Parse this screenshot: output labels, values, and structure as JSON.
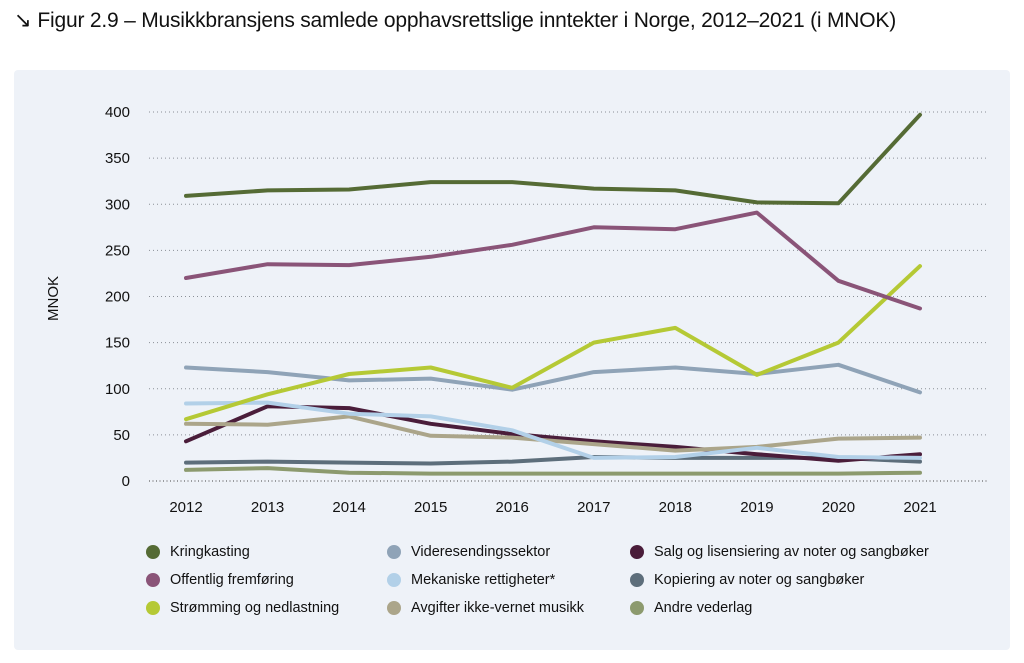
{
  "title": {
    "arrow": "↘",
    "text": "Figur 2.9 – Musikkbransjens samlede opphavsrettslige inntekter i Norge, 2012–2021 (i MNOK)"
  },
  "chart_data": {
    "type": "line",
    "title": "Figur 2.9 – Musikkbransjens samlede opphavsrettslige inntekter i Norge, 2012–2021 (i MNOK)",
    "xlabel": "",
    "ylabel": "MNOK",
    "ylim": [
      0,
      400
    ],
    "yticks": [
      0,
      50,
      100,
      150,
      200,
      250,
      300,
      350,
      400
    ],
    "grid": "horizontal-dotted",
    "legend_position": "bottom",
    "categories": [
      "2012",
      "2013",
      "2014",
      "2015",
      "2016",
      "2017",
      "2018",
      "2019",
      "2020",
      "2021"
    ],
    "series": [
      {
        "name": "Kringkasting",
        "color": "#556b35",
        "values": [
          309,
          315,
          316,
          324,
          324,
          317,
          315,
          302,
          301,
          397
        ]
      },
      {
        "name": "Offentlig fremføring",
        "color": "#8a5478",
        "values": [
          220,
          235,
          234,
          243,
          256,
          275,
          273,
          291,
          217,
          187
        ]
      },
      {
        "name": "Strømming og nedlastning",
        "color": "#b5c935",
        "values": [
          67,
          94,
          116,
          123,
          101,
          150,
          166,
          115,
          150,
          233
        ]
      },
      {
        "name": "Videresendingssektor",
        "color": "#8fa3b7",
        "values": [
          123,
          118,
          109,
          111,
          99,
          118,
          123,
          116,
          126,
          96
        ]
      },
      {
        "name": "Mekaniske rettigheter*",
        "color": "#b2d0e8",
        "values": [
          84,
          85,
          73,
          70,
          55,
          25,
          26,
          36,
          26,
          25
        ]
      },
      {
        "name": "Avgifter ikke-vernet musikk",
        "color": "#aba58a",
        "values": [
          62,
          61,
          70,
          49,
          47,
          40,
          33,
          37,
          46,
          47
        ]
      },
      {
        "name": "Salg og lisensiering av noter og sangbøker",
        "color": "#4a1d3a",
        "values": [
          43,
          81,
          79,
          62,
          51,
          43,
          37,
          29,
          22,
          29
        ]
      },
      {
        "name": "Kopiering av noter og sangbøker",
        "color": "#5d6e7b",
        "values": [
          20,
          21,
          20,
          19,
          21,
          26,
          25,
          25,
          25,
          21
        ]
      },
      {
        "name": "Andre vederlag",
        "color": "#8c9a6e",
        "values": [
          12,
          14,
          9,
          8,
          8,
          8,
          8,
          8,
          8,
          9
        ]
      }
    ]
  }
}
